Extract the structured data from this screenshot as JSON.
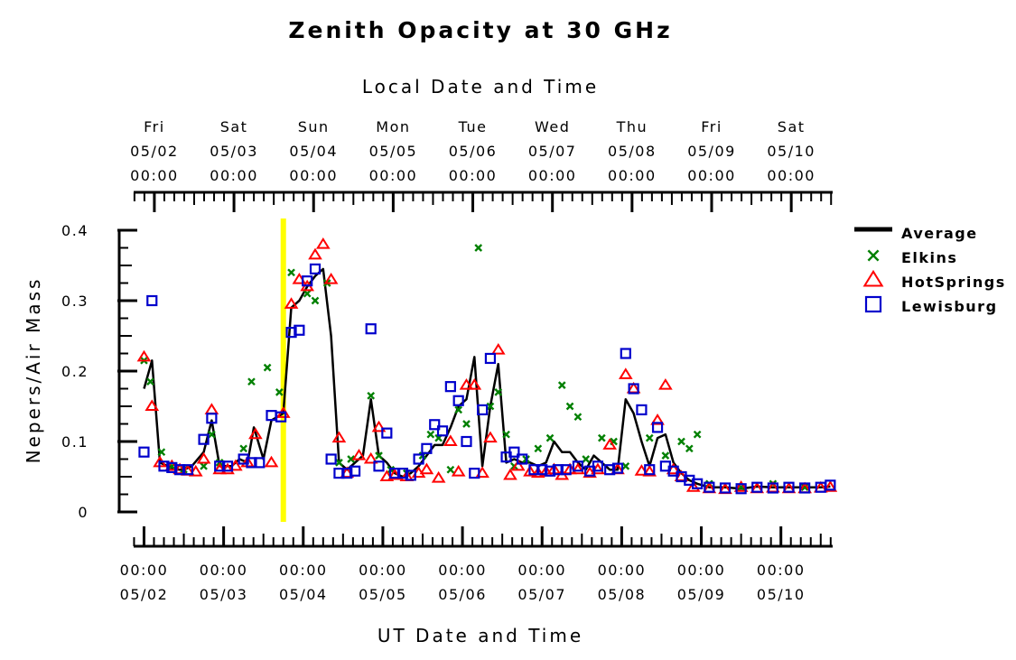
{
  "chart_data": {
    "type": "scatter",
    "title": "Zenith Opacity at 30 GHz",
    "top_xlabel": "Local Date and Time",
    "bottom_xlabel": "UT Date and Time",
    "ylabel": "Nepers/Air Mass",
    "ylim": [
      0,
      0.4
    ],
    "yticks": [
      {
        "value": 0,
        "label": "0"
      },
      {
        "value": 0.1,
        "label": "0.1"
      },
      {
        "value": 0.2,
        "label": "0.2"
      },
      {
        "value": 0.3,
        "label": "0.3"
      },
      {
        "value": 0.4,
        "label": "0.4"
      }
    ],
    "xlim_days": [
      -0.13,
      8.65
    ],
    "top_ticks": [
      {
        "day": 0.13,
        "weekday": "Fri",
        "date": "05/02",
        "time": "00:00"
      },
      {
        "day": 1.13,
        "weekday": "Sat",
        "date": "05/03",
        "time": "00:00"
      },
      {
        "day": 2.13,
        "weekday": "Sun",
        "date": "05/04",
        "time": "00:00"
      },
      {
        "day": 3.13,
        "weekday": "Mon",
        "date": "05/05",
        "time": "00:00"
      },
      {
        "day": 4.13,
        "weekday": "Tue",
        "date": "05/06",
        "time": "00:00"
      },
      {
        "day": 5.13,
        "weekday": "Wed",
        "date": "05/07",
        "time": "00:00"
      },
      {
        "day": 6.13,
        "weekday": "Thu",
        "date": "05/08",
        "time": "00:00"
      },
      {
        "day": 7.13,
        "weekday": "Fri",
        "date": "05/09",
        "time": "00:00"
      },
      {
        "day": 8.13,
        "weekday": "Sat",
        "date": "05/10",
        "time": "00:00"
      }
    ],
    "bottom_ticks": [
      {
        "day": 0,
        "time": "00:00",
        "date": "05/02"
      },
      {
        "day": 1,
        "time": "00:00",
        "date": "05/03"
      },
      {
        "day": 2,
        "time": "00:00",
        "date": "05/04"
      },
      {
        "day": 3,
        "time": "00:00",
        "date": "05/05"
      },
      {
        "day": 4,
        "time": "00:00",
        "date": "05/06"
      },
      {
        "day": 5,
        "time": "00:00",
        "date": "05/07"
      },
      {
        "day": 6,
        "time": "00:00",
        "date": "05/08"
      },
      {
        "day": 7,
        "time": "00:00",
        "date": "05/09"
      },
      {
        "day": 8,
        "time": "00:00",
        "date": "05/10"
      }
    ],
    "minor_tick_interval_days": 0.125,
    "highlight_day": 1.75,
    "highlight_color": "#ffff00",
    "legend": [
      {
        "name": "Average",
        "marker": "line",
        "color": "#000000"
      },
      {
        "name": "Elkins",
        "marker": "x",
        "color": "#008000"
      },
      {
        "name": "HotSprings",
        "marker": "triangle",
        "color": "#ff0000"
      },
      {
        "name": "Lewisburg",
        "marker": "square",
        "color": "#0000cc"
      }
    ],
    "series": [
      {
        "name": "Average",
        "marker": "line",
        "color": "#000000",
        "points": [
          [
            0.0,
            0.175
          ],
          [
            0.1,
            0.215
          ],
          [
            0.2,
            0.07
          ],
          [
            0.3,
            0.065
          ],
          [
            0.4,
            0.06
          ],
          [
            0.5,
            0.06
          ],
          [
            0.6,
            0.065
          ],
          [
            0.75,
            0.085
          ],
          [
            0.85,
            0.13
          ],
          [
            0.95,
            0.065
          ],
          [
            1.1,
            0.065
          ],
          [
            1.2,
            0.075
          ],
          [
            1.3,
            0.07
          ],
          [
            1.38,
            0.12
          ],
          [
            1.5,
            0.075
          ],
          [
            1.6,
            0.13
          ],
          [
            1.75,
            0.14
          ],
          [
            1.85,
            0.29
          ],
          [
            1.95,
            0.3
          ],
          [
            2.05,
            0.32
          ],
          [
            2.15,
            0.335
          ],
          [
            2.25,
            0.345
          ],
          [
            2.35,
            0.25
          ],
          [
            2.45,
            0.07
          ],
          [
            2.55,
            0.06
          ],
          [
            2.65,
            0.07
          ],
          [
            2.75,
            0.08
          ],
          [
            2.85,
            0.16
          ],
          [
            2.95,
            0.08
          ],
          [
            3.05,
            0.07
          ],
          [
            3.15,
            0.055
          ],
          [
            3.25,
            0.05
          ],
          [
            3.35,
            0.055
          ],
          [
            3.45,
            0.065
          ],
          [
            3.55,
            0.08
          ],
          [
            3.65,
            0.095
          ],
          [
            3.75,
            0.095
          ],
          [
            3.85,
            0.12
          ],
          [
            3.95,
            0.15
          ],
          [
            4.05,
            0.16
          ],
          [
            4.15,
            0.22
          ],
          [
            4.25,
            0.065
          ],
          [
            4.35,
            0.15
          ],
          [
            4.45,
            0.21
          ],
          [
            4.55,
            0.07
          ],
          [
            4.65,
            0.075
          ],
          [
            4.75,
            0.07
          ],
          [
            4.85,
            0.07
          ],
          [
            4.95,
            0.065
          ],
          [
            5.05,
            0.07
          ],
          [
            5.15,
            0.1
          ],
          [
            5.25,
            0.085
          ],
          [
            5.35,
            0.085
          ],
          [
            5.45,
            0.07
          ],
          [
            5.55,
            0.06
          ],
          [
            5.65,
            0.08
          ],
          [
            5.75,
            0.07
          ],
          [
            5.85,
            0.06
          ],
          [
            5.95,
            0.06
          ],
          [
            6.05,
            0.16
          ],
          [
            6.15,
            0.14
          ],
          [
            6.25,
            0.1
          ],
          [
            6.35,
            0.065
          ],
          [
            6.45,
            0.105
          ],
          [
            6.55,
            0.11
          ],
          [
            6.65,
            0.07
          ],
          [
            6.75,
            0.055
          ],
          [
            6.85,
            0.045
          ],
          [
            6.95,
            0.04
          ],
          [
            7.1,
            0.035
          ],
          [
            7.3,
            0.035
          ],
          [
            7.5,
            0.033
          ],
          [
            7.7,
            0.036
          ],
          [
            7.9,
            0.035
          ],
          [
            8.1,
            0.035
          ],
          [
            8.3,
            0.035
          ],
          [
            8.5,
            0.035
          ],
          [
            8.62,
            0.036
          ]
        ]
      },
      {
        "name": "Elkins",
        "marker": "x",
        "color": "#008000",
        "points": [
          [
            0.0,
            0.215
          ],
          [
            0.08,
            0.185
          ],
          [
            0.22,
            0.085
          ],
          [
            0.35,
            0.065
          ],
          [
            0.5,
            0.06
          ],
          [
            0.75,
            0.065
          ],
          [
            0.85,
            0.11
          ],
          [
            0.95,
            0.07
          ],
          [
            1.25,
            0.09
          ],
          [
            1.35,
            0.185
          ],
          [
            1.55,
            0.205
          ],
          [
            1.7,
            0.17
          ],
          [
            1.85,
            0.34
          ],
          [
            2.05,
            0.31
          ],
          [
            2.15,
            0.3
          ],
          [
            2.3,
            0.325
          ],
          [
            2.45,
            0.07
          ],
          [
            2.6,
            0.075
          ],
          [
            2.85,
            0.165
          ],
          [
            2.95,
            0.08
          ],
          [
            3.1,
            0.06
          ],
          [
            3.3,
            0.055
          ],
          [
            3.5,
            0.08
          ],
          [
            3.6,
            0.11
          ],
          [
            3.7,
            0.105
          ],
          [
            3.85,
            0.06
          ],
          [
            3.95,
            0.145
          ],
          [
            4.05,
            0.125
          ],
          [
            4.2,
            0.375
          ],
          [
            4.35,
            0.15
          ],
          [
            4.45,
            0.17
          ],
          [
            4.55,
            0.11
          ],
          [
            4.65,
            0.065
          ],
          [
            4.8,
            0.075
          ],
          [
            4.95,
            0.09
          ],
          [
            5.1,
            0.105
          ],
          [
            5.25,
            0.18
          ],
          [
            5.35,
            0.15
          ],
          [
            5.45,
            0.135
          ],
          [
            5.55,
            0.075
          ],
          [
            5.75,
            0.105
          ],
          [
            5.9,
            0.1
          ],
          [
            6.05,
            0.065
          ],
          [
            6.35,
            0.105
          ],
          [
            6.55,
            0.08
          ],
          [
            6.75,
            0.1
          ],
          [
            6.85,
            0.09
          ],
          [
            6.95,
            0.11
          ],
          [
            7.1,
            0.04
          ],
          [
            7.5,
            0.035
          ],
          [
            7.9,
            0.04
          ],
          [
            8.3,
            0.035
          ]
        ]
      },
      {
        "name": "HotSprings",
        "marker": "triangle",
        "color": "#ff0000",
        "points": [
          [
            0.0,
            0.22
          ],
          [
            0.1,
            0.15
          ],
          [
            0.2,
            0.07
          ],
          [
            0.35,
            0.065
          ],
          [
            0.45,
            0.06
          ],
          [
            0.55,
            0.058
          ],
          [
            0.65,
            0.057
          ],
          [
            0.75,
            0.075
          ],
          [
            0.85,
            0.145
          ],
          [
            0.95,
            0.06
          ],
          [
            1.05,
            0.06
          ],
          [
            1.15,
            0.065
          ],
          [
            1.3,
            0.07
          ],
          [
            1.4,
            0.11
          ],
          [
            1.6,
            0.07
          ],
          [
            1.75,
            0.14
          ],
          [
            1.85,
            0.295
          ],
          [
            1.95,
            0.33
          ],
          [
            2.05,
            0.32
          ],
          [
            2.15,
            0.365
          ],
          [
            2.25,
            0.38
          ],
          [
            2.35,
            0.33
          ],
          [
            2.45,
            0.105
          ],
          [
            2.55,
            0.055
          ],
          [
            2.7,
            0.08
          ],
          [
            2.85,
            0.075
          ],
          [
            2.95,
            0.12
          ],
          [
            3.05,
            0.05
          ],
          [
            3.15,
            0.052
          ],
          [
            3.3,
            0.05
          ],
          [
            3.45,
            0.055
          ],
          [
            3.55,
            0.06
          ],
          [
            3.7,
            0.048
          ],
          [
            3.85,
            0.1
          ],
          [
            3.95,
            0.057
          ],
          [
            4.05,
            0.18
          ],
          [
            4.15,
            0.18
          ],
          [
            4.25,
            0.055
          ],
          [
            4.35,
            0.105
          ],
          [
            4.45,
            0.23
          ],
          [
            4.6,
            0.052
          ],
          [
            4.7,
            0.065
          ],
          [
            4.85,
            0.057
          ],
          [
            4.95,
            0.055
          ],
          [
            5.05,
            0.057
          ],
          [
            5.15,
            0.06
          ],
          [
            5.25,
            0.052
          ],
          [
            5.35,
            0.06
          ],
          [
            5.45,
            0.06
          ],
          [
            5.6,
            0.055
          ],
          [
            5.7,
            0.06
          ],
          [
            5.85,
            0.095
          ],
          [
            5.95,
            0.06
          ],
          [
            6.05,
            0.195
          ],
          [
            6.15,
            0.175
          ],
          [
            6.25,
            0.058
          ],
          [
            6.35,
            0.057
          ],
          [
            6.45,
            0.13
          ],
          [
            6.55,
            0.18
          ],
          [
            6.65,
            0.06
          ],
          [
            6.75,
            0.05
          ],
          [
            6.9,
            0.035
          ],
          [
            7.1,
            0.033
          ],
          [
            7.3,
            0.032
          ],
          [
            7.5,
            0.035
          ],
          [
            7.7,
            0.033
          ],
          [
            7.9,
            0.034
          ],
          [
            8.1,
            0.033
          ],
          [
            8.3,
            0.033
          ],
          [
            8.5,
            0.034
          ],
          [
            8.62,
            0.035
          ]
        ]
      },
      {
        "name": "Lewisburg",
        "marker": "square",
        "color": "#0000cc",
        "points": [
          [
            0.0,
            0.085
          ],
          [
            0.1,
            0.3
          ],
          [
            0.25,
            0.065
          ],
          [
            0.35,
            0.063
          ],
          [
            0.45,
            0.06
          ],
          [
            0.55,
            0.06
          ],
          [
            0.75,
            0.103
          ],
          [
            0.85,
            0.133
          ],
          [
            0.95,
            0.065
          ],
          [
            1.05,
            0.065
          ],
          [
            1.25,
            0.075
          ],
          [
            1.35,
            0.07
          ],
          [
            1.45,
            0.07
          ],
          [
            1.6,
            0.137
          ],
          [
            1.72,
            0.135
          ],
          [
            1.85,
            0.255
          ],
          [
            1.95,
            0.258
          ],
          [
            2.05,
            0.328
          ],
          [
            2.15,
            0.345
          ],
          [
            2.35,
            0.075
          ],
          [
            2.45,
            0.055
          ],
          [
            2.55,
            0.055
          ],
          [
            2.65,
            0.058
          ],
          [
            2.85,
            0.26
          ],
          [
            2.95,
            0.065
          ],
          [
            3.05,
            0.112
          ],
          [
            3.15,
            0.055
          ],
          [
            3.25,
            0.055
          ],
          [
            3.35,
            0.052
          ],
          [
            3.45,
            0.075
          ],
          [
            3.55,
            0.09
          ],
          [
            3.65,
            0.124
          ],
          [
            3.75,
            0.115
          ],
          [
            3.85,
            0.178
          ],
          [
            3.95,
            0.158
          ],
          [
            4.05,
            0.1
          ],
          [
            4.15,
            0.055
          ],
          [
            4.25,
            0.145
          ],
          [
            4.35,
            0.218
          ],
          [
            4.55,
            0.078
          ],
          [
            4.65,
            0.085
          ],
          [
            4.75,
            0.075
          ],
          [
            4.9,
            0.06
          ],
          [
            5.0,
            0.06
          ],
          [
            5.1,
            0.058
          ],
          [
            5.2,
            0.06
          ],
          [
            5.3,
            0.06
          ],
          [
            5.45,
            0.065
          ],
          [
            5.6,
            0.058
          ],
          [
            5.7,
            0.065
          ],
          [
            5.85,
            0.06
          ],
          [
            5.95,
            0.062
          ],
          [
            6.05,
            0.225
          ],
          [
            6.15,
            0.175
          ],
          [
            6.25,
            0.145
          ],
          [
            6.35,
            0.06
          ],
          [
            6.45,
            0.12
          ],
          [
            6.55,
            0.065
          ],
          [
            6.65,
            0.058
          ],
          [
            6.75,
            0.05
          ],
          [
            6.85,
            0.045
          ],
          [
            6.95,
            0.04
          ],
          [
            7.1,
            0.035
          ],
          [
            7.3,
            0.034
          ],
          [
            7.5,
            0.033
          ],
          [
            7.7,
            0.035
          ],
          [
            7.9,
            0.034
          ],
          [
            8.1,
            0.035
          ],
          [
            8.3,
            0.034
          ],
          [
            8.5,
            0.035
          ],
          [
            8.62,
            0.038
          ]
        ]
      }
    ]
  }
}
